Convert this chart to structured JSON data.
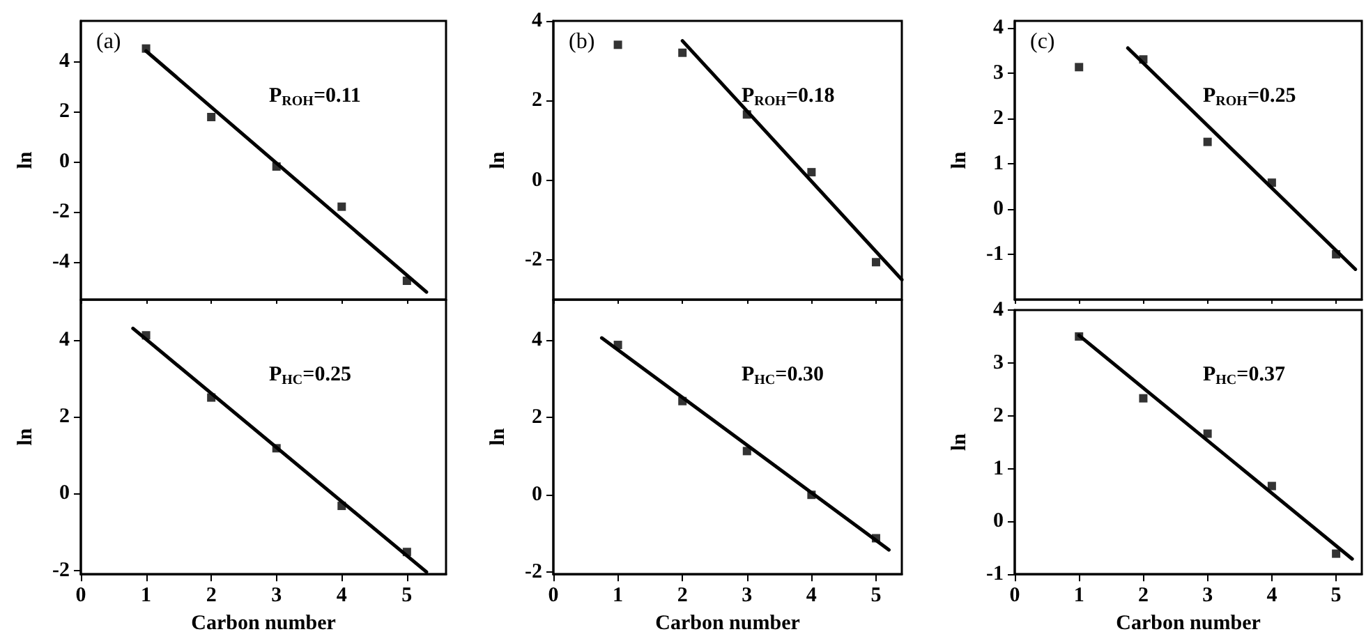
{
  "chart_data": [
    {
      "type": "scatter",
      "title": "(a)",
      "ylabel": "ln",
      "annotations": [
        "P$_{ROH}$=0.11"
      ],
      "x": [
        1,
        2,
        3,
        4,
        5
      ],
      "tick_labels": "y",
      "xlim": [
        0,
        5.6
      ],
      "xticks": [
        0,
        1,
        2,
        3,
        4,
        5
      ],
      "ylim": [
        -5.5,
        5.6
      ],
      "yticks": [
        -4,
        -2,
        0,
        2,
        4
      ],
      "series": [
        {
          "color": "#000000",
          "marker": "square",
          "values": [
            4.5,
            1.77,
            -0.2,
            -1.8,
            -4.75
          ]
        },
        {
          "type": "line",
          "marker": "none",
          "color": "#000000",
          "x": [
            1,
            5.3
          ],
          "values": [
            4.4,
            -5.2
          ]
        }
      ]
    },
    {
      "type": "scatter",
      "title": "(b)",
      "ylabel": "ln",
      "annotations": [
        "P$_{ROH}$=0.18"
      ],
      "x": [
        1,
        2,
        3,
        4,
        5
      ],
      "tick_labels": "y",
      "xlim": [
        0,
        5.4
      ],
      "xticks": [
        0,
        1,
        2,
        3,
        4,
        5
      ],
      "ylim": [
        -3,
        4
      ],
      "yticks": [
        -2,
        0,
        2,
        4
      ],
      "series": [
        {
          "color": "#000000",
          "marker": "square",
          "values": [
            3.4,
            3.2,
            1.65,
            0.2,
            -2.06
          ]
        },
        {
          "type": "line",
          "marker": "none",
          "color": "#000000",
          "x": [
            2,
            5.4
          ],
          "values": [
            3.5,
            -2.5
          ]
        }
      ]
    },
    {
      "type": "scatter",
      "title": "(c)",
      "ylabel": "ln",
      "annotations": [
        "P$_{ROH}$=0.25"
      ],
      "x": [
        1,
        2,
        3,
        4,
        5
      ],
      "tick_labels": "y",
      "xlim": [
        0,
        5.4
      ],
      "xticks": [
        0,
        1,
        2,
        3,
        4,
        5
      ],
      "ylim": [
        -2,
        4.15
      ],
      "yticks": [
        -1,
        0,
        1,
        2,
        3,
        4
      ],
      "series": [
        {
          "color": "#000000",
          "marker": "square",
          "values": [
            3.13,
            3.3,
            1.48,
            0.58,
            -1.0
          ]
        },
        {
          "type": "line",
          "marker": "none",
          "color": "#000000",
          "x": [
            1.76,
            5.3
          ],
          "values": [
            3.55,
            -1.33
          ]
        }
      ]
    },
    {
      "type": "scatter",
      "xlabel": "Carbon number",
      "ylabel": "ln",
      "annotations": [
        "P$_{HC}$=0.25"
      ],
      "x": [
        1,
        2,
        3,
        4,
        5
      ],
      "xlim": [
        0,
        5.6
      ],
      "xticks": [
        0,
        1,
        2,
        3,
        4,
        5
      ],
      "ylim": [
        -2.1,
        5.05
      ],
      "yticks": [
        -2,
        0,
        2,
        4
      ],
      "series": [
        {
          "color": "#000000",
          "marker": "square",
          "values": [
            4.12,
            2.5,
            1.18,
            -0.32,
            -1.52
          ]
        },
        {
          "type": "line",
          "marker": "none",
          "color": "#000000",
          "x": [
            0.8,
            5.3
          ],
          "values": [
            4.3,
            -2.04
          ]
        }
      ]
    },
    {
      "type": "scatter",
      "xlabel": "Carbon number",
      "ylabel": "ln",
      "annotations": [
        "P$_{HC}$=0.30"
      ],
      "x": [
        1,
        2,
        3,
        4,
        5
      ],
      "xlim": [
        0,
        5.4
      ],
      "xticks": [
        0,
        1,
        2,
        3,
        4,
        5
      ],
      "ylim": [
        -2.05,
        5.04
      ],
      "yticks": [
        -2,
        0,
        2,
        4
      ],
      "series": [
        {
          "color": "#000000",
          "marker": "square",
          "values": [
            3.87,
            2.42,
            1.13,
            0.0,
            -1.12
          ]
        },
        {
          "type": "line",
          "marker": "none",
          "color": "#000000",
          "x": [
            0.75,
            5.2
          ],
          "values": [
            4.05,
            -1.42
          ]
        }
      ]
    },
    {
      "type": "scatter",
      "xlabel": "Carbon number",
      "ylabel": "ln",
      "annotations": [
        "P$_{HC}$=0.37"
      ],
      "x": [
        1,
        2,
        3,
        4,
        5
      ],
      "xlim": [
        0,
        5.4
      ],
      "xticks": [
        0,
        1,
        2,
        3,
        4,
        5
      ],
      "ylim": [
        -1,
        4
      ],
      "yticks": [
        -1,
        0,
        1,
        2,
        3,
        4
      ],
      "series": [
        {
          "color": "#000000",
          "marker": "square",
          "values": [
            3.5,
            2.33,
            1.66,
            0.67,
            -0.61
          ]
        },
        {
          "type": "line",
          "marker": "none",
          "color": "#000000",
          "x": [
            1,
            5.25
          ],
          "values": [
            3.52,
            -0.71
          ]
        }
      ]
    }
  ]
}
